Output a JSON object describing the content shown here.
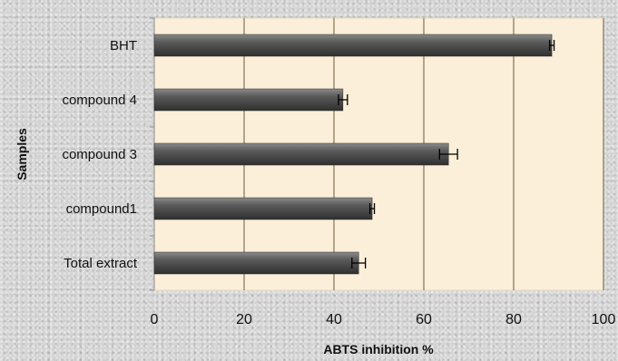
{
  "chart_data": {
    "type": "bar",
    "orientation": "horizontal",
    "categories": [
      "Total extract",
      "compound1",
      "compound 3",
      "compound 4",
      "BHT"
    ],
    "values": [
      45.5,
      48.5,
      65.5,
      42,
      88.5
    ],
    "error": [
      1.5,
      0.5,
      2,
      1,
      0.5
    ],
    "xlabel": "ABTS inhibition  %",
    "ylabel": "Samples",
    "xlim": [
      0,
      100
    ],
    "xticks": [
      0,
      20,
      40,
      60,
      80,
      100
    ],
    "grid": true,
    "legend": "none",
    "colors": {
      "bar": "#4a4a4a",
      "plot_background": "#fbefd9",
      "gridline": "#6b5a3a"
    }
  }
}
